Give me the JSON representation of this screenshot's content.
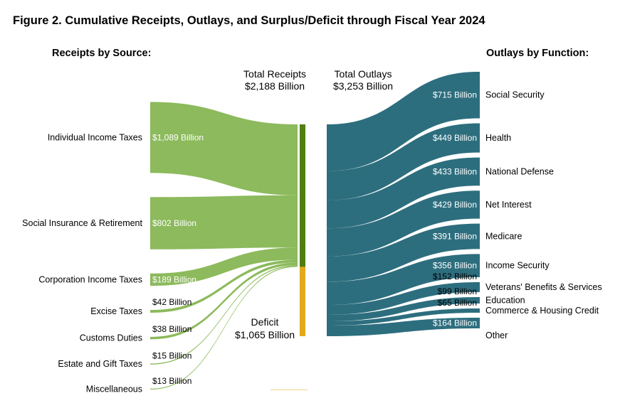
{
  "chart_data": {
    "type": "sankey",
    "title": "Figure 2. Cumulative Receipts, Outlays, and Surplus/Deficit through Fiscal Year 2024",
    "receipts_heading": "Receipts by Source:",
    "outlays_heading": "Outlays by Function:",
    "total_receipts_label": "Total Receipts",
    "total_receipts_value": "$2,188 Billion",
    "total_outlays_label": "Total Outlays",
    "total_outlays_value": "$3,253 Billion",
    "deficit_label": "Deficit",
    "deficit_value": "$1,065 Billion",
    "unit": "Billion USD",
    "receipts": [
      {
        "name": "Individual Income Taxes",
        "value": 1089,
        "label": "$1,089 Billion"
      },
      {
        "name": "Social Insurance & Retirement",
        "value": 802,
        "label": "$802 Billion"
      },
      {
        "name": "Corporation Income Taxes",
        "value": 189,
        "label": "$189 Billion"
      },
      {
        "name": "Excise Taxes",
        "value": 42,
        "label": "$42 Billion"
      },
      {
        "name": "Customs Duties",
        "value": 38,
        "label": "$38 Billion"
      },
      {
        "name": "Estate and Gift Taxes",
        "value": 15,
        "label": "$15 Billion"
      },
      {
        "name": "Miscellaneous",
        "value": 13,
        "label": "$13 Billion"
      }
    ],
    "outlays": [
      {
        "name": "Social Security",
        "value": 715,
        "label": "$715 Billion"
      },
      {
        "name": "Health",
        "value": 449,
        "label": "$449 Billion"
      },
      {
        "name": "National Defense",
        "value": 433,
        "label": "$433 Billion"
      },
      {
        "name": "Net Interest",
        "value": 429,
        "label": "$429 Billion"
      },
      {
        "name": "Medicare",
        "value": 391,
        "label": "$391 Billion"
      },
      {
        "name": "Income Security",
        "value": 356,
        "label": "$356 Billion"
      },
      {
        "name": "Veterans' Benefits & Services",
        "value": 152,
        "label": "$152 Billion"
      },
      {
        "name": "Education",
        "value": 99,
        "label": "$99 Billion"
      },
      {
        "name": "Commerce & Housing Credit",
        "value": 65,
        "label": "$65 Billion"
      },
      {
        "name": "Other",
        "value": 164,
        "label": "$164 Billion"
      }
    ],
    "colors": {
      "receipts_flow": "#8cba5c",
      "receipts_bar": "#507e10",
      "deficit_bar": "#e3a81b",
      "outlays_flow": "#2d6e7e",
      "inside_text": "#ffffff",
      "outside_text": "#000000"
    }
  }
}
